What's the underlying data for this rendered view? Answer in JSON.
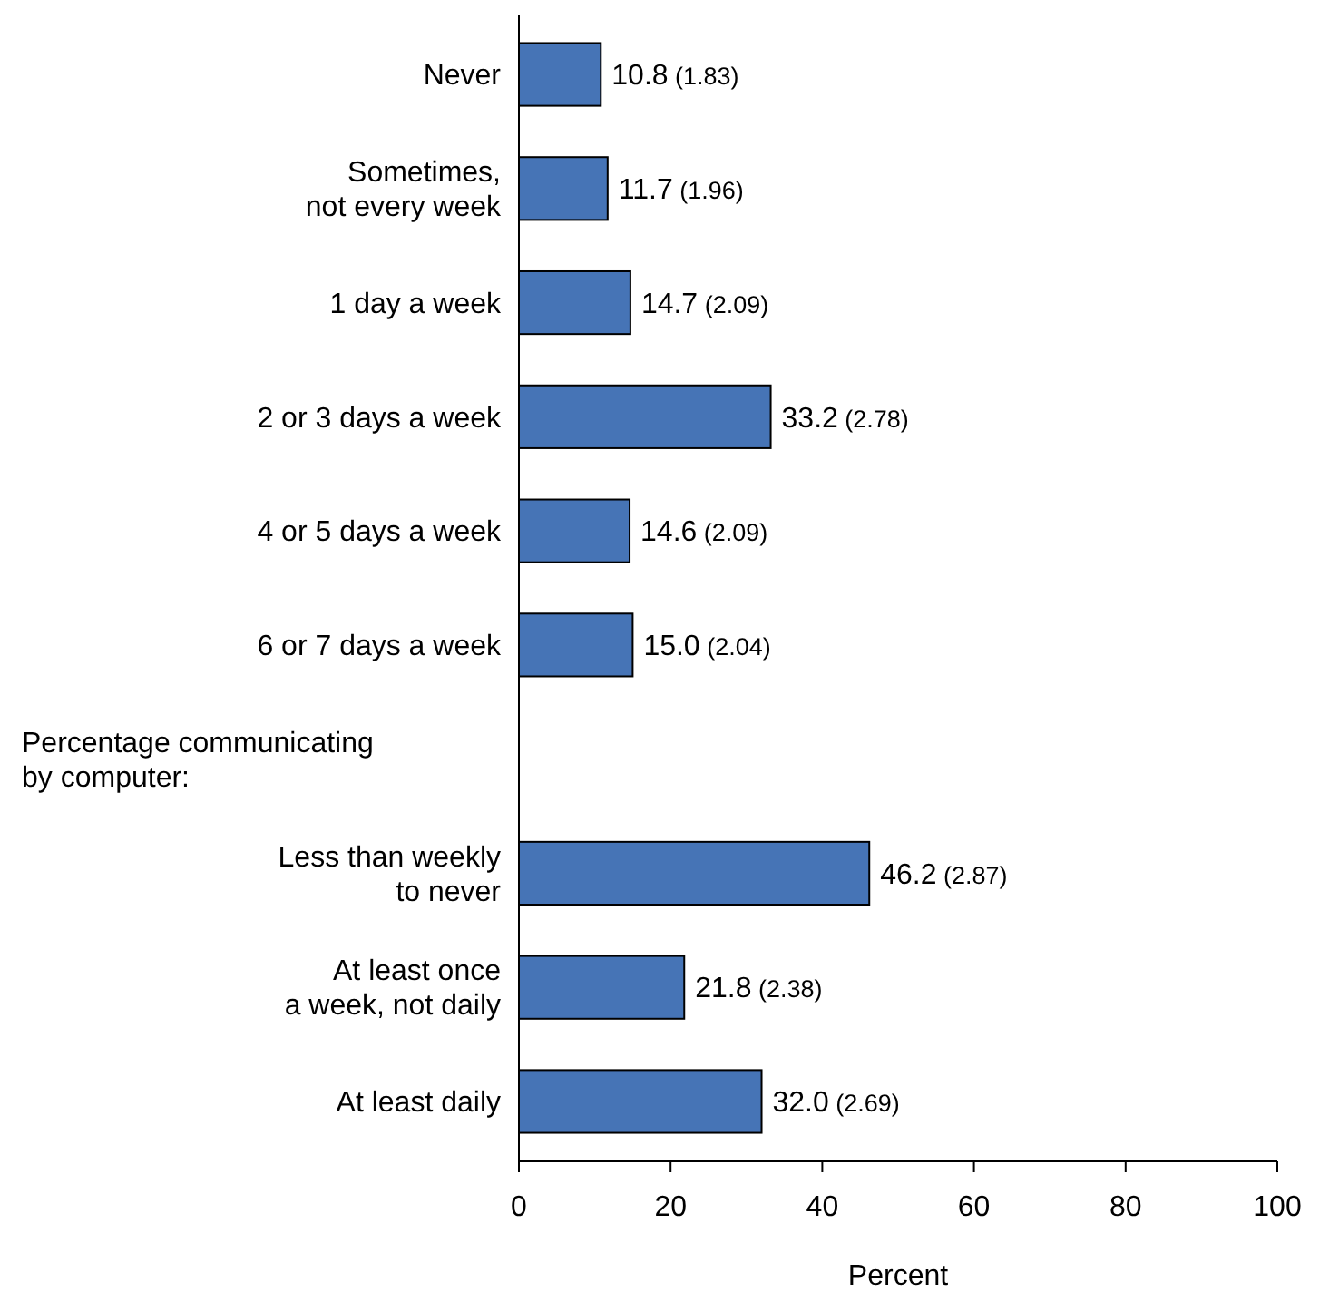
{
  "chart_data": {
    "type": "bar",
    "orientation": "horizontal",
    "xlabel": "Percent",
    "categories": [
      "Never",
      "Sometimes,\nnot every week",
      "1 day a week",
      "2 or 3 days a week",
      "4 or 5 days a week",
      "6 or 7 days a week",
      null,
      "Less than weekly\nto never",
      "At least once\na week, not daily",
      "At least daily"
    ],
    "values": [
      10.8,
      11.7,
      14.7,
      33.2,
      14.6,
      15.0,
      null,
      46.2,
      21.8,
      32.0
    ],
    "value_labels": [
      "10.8 (1.83)",
      "11.7 (1.96)",
      "14.7 (2.09)",
      "33.2 (2.78)",
      "14.6 (2.09)",
      "15.0 (2.04)",
      null,
      "46.2 (2.87)",
      "21.8 (2.38)",
      "32.0 (2.69)"
    ],
    "color": "#4674b6",
    "xlim": [
      0,
      100
    ],
    "xticks": [
      0,
      20,
      40,
      60,
      80,
      100
    ],
    "annotations": [
      "Percentage communicating\nby computer:"
    ],
    "relative": false
  }
}
